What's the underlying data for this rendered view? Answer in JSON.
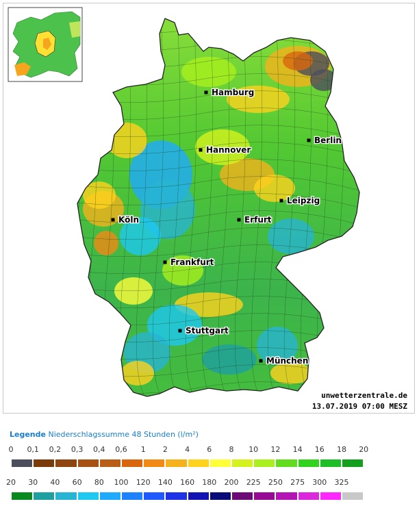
{
  "map": {
    "cities": [
      {
        "name": "Hamburg"
      },
      {
        "name": "Berlin"
      },
      {
        "name": "Hannover"
      },
      {
        "name": "Leipzig"
      },
      {
        "name": "Köln"
      },
      {
        "name": "Erfurt"
      },
      {
        "name": "Frankfurt"
      },
      {
        "name": "Stuttgart"
      },
      {
        "name": "München"
      }
    ],
    "credit": "unwetterzentrale.de",
    "timestamp": "13.07.2019 07:00 MESZ"
  },
  "legend": {
    "title": "Legende",
    "subtitle": "Niederschlagssumme 48 Stunden",
    "unit": "(l/m²)",
    "row1": {
      "labels": [
        "0",
        "0,1",
        "0,2",
        "0,3",
        "0,4",
        "0,6",
        "1",
        "2",
        "4",
        "6",
        "8",
        "10",
        "12",
        "14",
        "16",
        "18",
        "20"
      ],
      "colors": [
        "#4b4e5c",
        "#7a3a0a",
        "#8e4510",
        "#a65212",
        "#b85e16",
        "#d9660f",
        "#f08a14",
        "#f5b21c",
        "#ffd21e",
        "#ffff3a",
        "#d6f21e",
        "#aaf01e",
        "#64dc1e",
        "#32d21e",
        "#1ebe28",
        "#14a01e"
      ]
    },
    "row2": {
      "labels": [
        "20",
        "30",
        "40",
        "60",
        "80",
        "100",
        "120",
        "140",
        "160",
        "180",
        "200",
        "225",
        "250",
        "275",
        "300",
        "325"
      ],
      "colors": [
        "#0a8a1e",
        "#1ea0a0",
        "#28b4d2",
        "#1ec8f0",
        "#1eaaff",
        "#1e82ff",
        "#1e5aff",
        "#1e32e6",
        "#1414b4",
        "#0a0a78",
        "#6e0a78",
        "#960a96",
        "#b414b4",
        "#dc28dc",
        "#ff28ff",
        "#c8c8c8"
      ]
    }
  }
}
